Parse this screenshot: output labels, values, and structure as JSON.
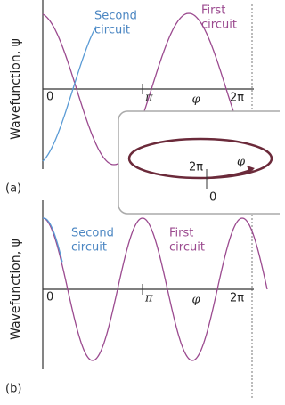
{
  "panels": [
    {
      "tag": "(a)",
      "y_label": "Wavefunction, ψ",
      "second": [
        "Second",
        "circuit"
      ],
      "first": [
        "First",
        "circuit"
      ],
      "ticks": [
        "0",
        "π",
        "φ",
        "2π"
      ],
      "inset": {
        "two_pi": "2π",
        "phi": "φ",
        "zero": "0"
      }
    },
    {
      "tag": "(b)",
      "y_label": "Wavefunction, ψ",
      "second": [
        "Second",
        "circuit"
      ],
      "first": [
        "First",
        "circuit"
      ],
      "ticks": [
        "0",
        "π",
        "φ",
        "2π"
      ]
    }
  ]
}
